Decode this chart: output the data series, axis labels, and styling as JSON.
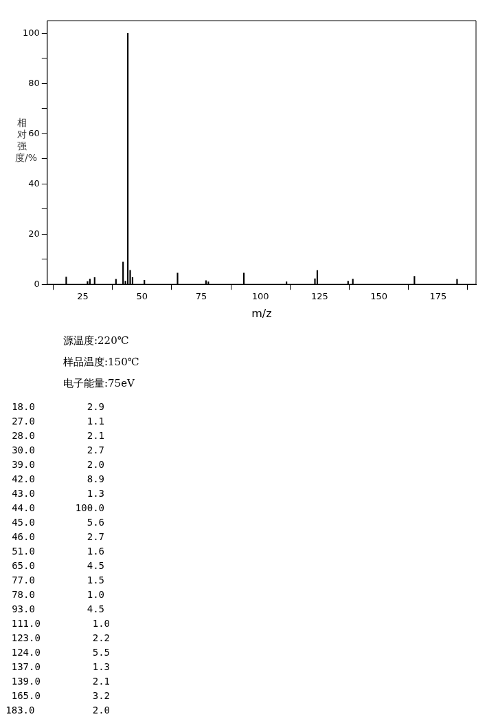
{
  "chart_data": {
    "type": "bar",
    "xlabel": "m/z",
    "ylabel": "相对强度/%",
    "x": [
      18,
      27,
      28,
      30,
      39,
      42,
      43,
      44,
      45,
      46,
      51,
      65,
      77,
      78,
      93,
      111,
      123,
      124,
      137,
      139,
      165,
      183
    ],
    "values": [
      2.9,
      1.1,
      2.1,
      2.7,
      2.0,
      8.9,
      1.3,
      100.0,
      5.6,
      2.7,
      1.6,
      4.5,
      1.5,
      1.0,
      4.5,
      1.0,
      2.2,
      5.5,
      1.3,
      2.1,
      3.2,
      2.0
    ],
    "color": "#000000",
    "xlim": [
      10,
      191
    ],
    "xticks": [
      25,
      50,
      75,
      100,
      125,
      150,
      175
    ],
    "ylim": [
      0,
      105
    ],
    "yticks": [
      0,
      {
        "value": 10,
        "label": null
      },
      20,
      {
        "value": 30,
        "label": null
      },
      40,
      {
        "value": 50,
        "label": null
      },
      60,
      {
        "value": 70,
        "label": null
      },
      80,
      {
        "value": 90,
        "label": null
      },
      100
    ],
    "grid": false,
    "annotations": [
      "源温度:220℃",
      "样品温度:150℃",
      "电子能量:75eV",
      "18.0         2.9",
      "27.0         1.1",
      "28.0         2.1",
      "30.0         2.7",
      "39.0         2.0",
      "42.0         8.9",
      "43.0         1.3",
      "44.0       100.0",
      "45.0         5.6",
      "46.0         2.7",
      "51.0         1.6",
      "65.0         4.5",
      "77.0         1.5",
      "78.0         1.0",
      "93.0         4.5",
      "111.0         1.0",
      "123.0         2.2",
      "124.0         5.5",
      "137.0         1.3",
      "139.0         2.1",
      "165.0         3.2",
      "183.0          2.0"
    ]
  }
}
